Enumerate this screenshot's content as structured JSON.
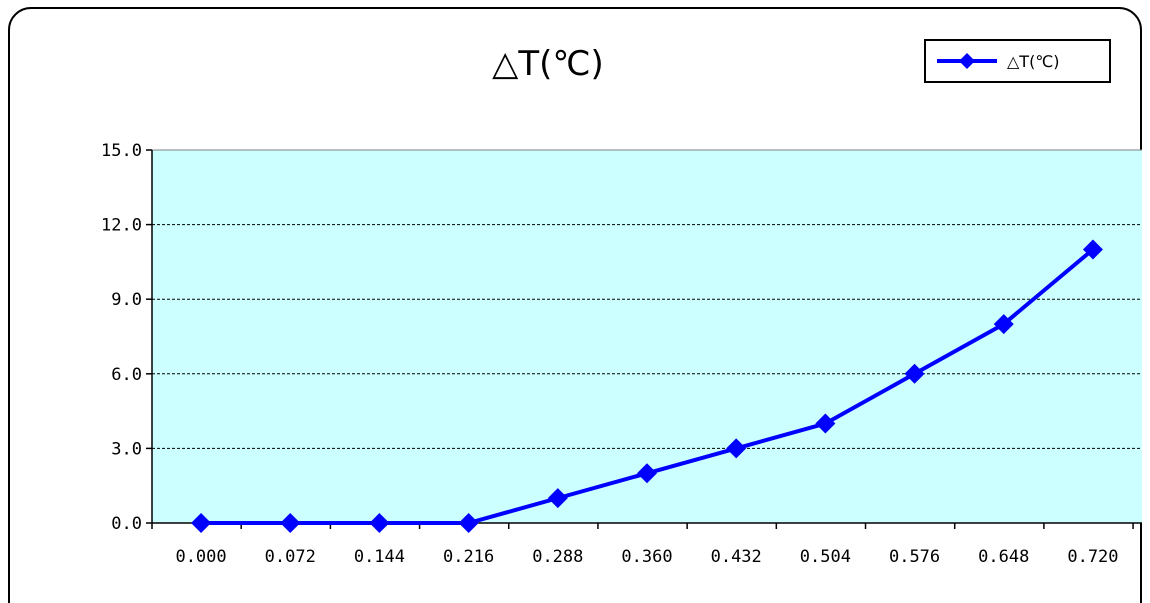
{
  "chart_data": {
    "type": "line",
    "title": "△T(℃)",
    "xlabel": "",
    "ylabel": "",
    "categories": [
      "0.000",
      "0.072",
      "0.144",
      "0.216",
      "0.288",
      "0.360",
      "0.432",
      "0.504",
      "0.576",
      "0.648",
      "0.720"
    ],
    "y_ticks": [
      "0.0",
      "3.0",
      "6.0",
      "9.0",
      "12.0",
      "15.0"
    ],
    "ylim": [
      0,
      15
    ],
    "series": [
      {
        "name": "△T(℃)",
        "values": [
          0,
          0,
          0,
          0,
          1,
          2,
          3,
          4,
          6,
          8,
          11
        ]
      }
    ],
    "grid": "horizontal dashed",
    "legend": "top-right",
    "colors": {
      "series": "#0000ff",
      "plot_background": "#ccffff",
      "grid": "#000000",
      "border": "#000000"
    }
  }
}
